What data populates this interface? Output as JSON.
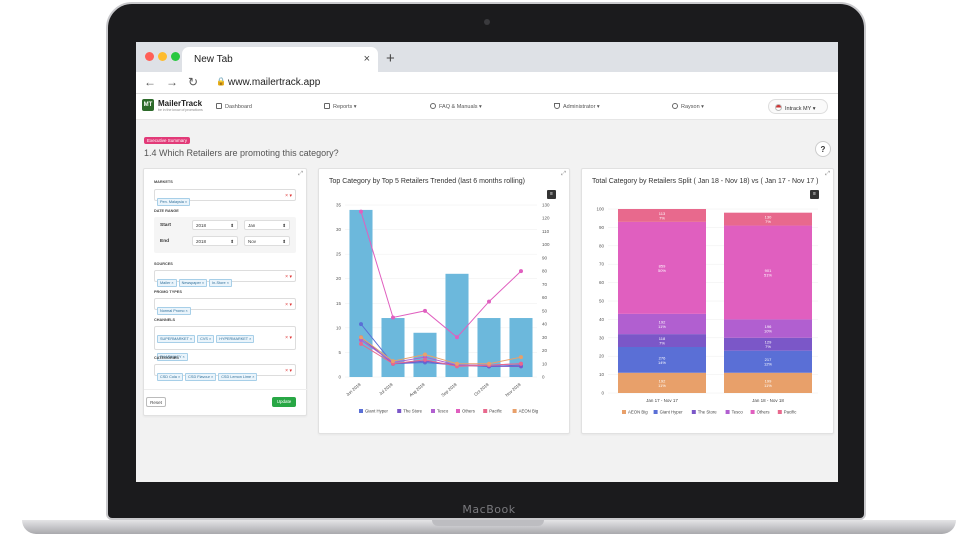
{
  "device": {
    "brand": "MacBook"
  },
  "browser": {
    "tab_title": "New Tab",
    "tab_close": "×",
    "new_tab": "+",
    "url": "www.mailertrack.app",
    "back": "←",
    "forward": "→",
    "reload": "↻"
  },
  "app": {
    "logo_mark": "MT",
    "logo_name": "MailerTrack",
    "logo_tagline": "be in the know of promotions",
    "nav": [
      {
        "label": "Dashboard",
        "icon": "dashboard-icon"
      },
      {
        "label": "Reports",
        "icon": "reports-icon"
      },
      {
        "label": "FAQ & Manuals",
        "icon": "help-circle-icon"
      },
      {
        "label": "Administrator",
        "icon": "shield-icon"
      },
      {
        "label": "Rayson",
        "icon": "user-icon"
      }
    ],
    "account": "Intrack MY"
  },
  "page": {
    "badge": "Executive Summary",
    "title": "1.4 Which Retailers are promoting this category?",
    "help": "?"
  },
  "filters": {
    "markets_label": "MARKETS",
    "markets": [
      "Pen. Malaysia"
    ],
    "date_range_label": "DATE RANGE",
    "start_label": "Start",
    "start_year": "2018",
    "start_month": "Jan",
    "end_label": "End",
    "end_year": "2018",
    "end_month": "Nov",
    "sources_label": "SOURCES",
    "sources": [
      "Mailer",
      "Newspaper",
      "In-Store"
    ],
    "promo_types_label": "PROMO TYPES",
    "promo_types": [
      "Normal Promo"
    ],
    "channels_label": "CHANNELS",
    "channels": [
      "SUPERMARKET",
      "CVS",
      "HYPERMARKET",
      "PHARMACY"
    ],
    "categories_label": "CATEGORIES",
    "categories": [
      "CSD Cola",
      "CSD Flavour",
      "CSD Lemon Lime"
    ],
    "reset_label": "Reset",
    "update_label": "Update"
  },
  "colors": {
    "accent_pink": "#e23a78",
    "update_green": "#28a745",
    "Giant Hyper": "#5a6fd6",
    "The Store": "#7b57c8",
    "Tesco": "#b15fd0",
    "Others": "#e05fbf",
    "Pacific": "#e8698d",
    "AEON Big": "#e8a06a",
    "bars": "#6cb8dc"
  },
  "chart_data": [
    {
      "type": "bar",
      "title": "Top Category by Top 5 Retailers Trended (last 6 months rolling)",
      "categories": [
        "Jun 2018",
        "Jul 2018",
        "Aug 2018",
        "Sep 2018",
        "Oct 2018",
        "Nov 2018"
      ],
      "values": [
        34,
        12,
        9,
        21,
        12,
        12
      ],
      "ylim": [
        0,
        35
      ],
      "y_ticks": [
        0,
        5,
        10,
        15,
        20,
        25,
        30,
        35
      ],
      "y2lim": [
        0,
        130
      ],
      "y2_ticks": [
        0,
        10,
        20,
        30,
        40,
        50,
        60,
        70,
        80,
        90,
        100,
        110,
        120,
        130
      ],
      "series": [
        {
          "name": "Giant Hyper",
          "values": [
            40,
            10,
            11,
            9,
            8,
            9
          ]
        },
        {
          "name": "The Store",
          "values": [
            30,
            10,
            12,
            9,
            8,
            8
          ]
        },
        {
          "name": "Tesco",
          "values": [
            28,
            11,
            15,
            9,
            9,
            10
          ]
        },
        {
          "name": "Others",
          "values": [
            125,
            45,
            50,
            30,
            57,
            80
          ]
        },
        {
          "name": "Pacific",
          "values": [
            25,
            10,
            13,
            8,
            9,
            10
          ]
        },
        {
          "name": "AEON Big",
          "values": [
            30,
            12,
            17,
            10,
            10,
            15
          ]
        }
      ],
      "legend": [
        "Giant Hyper",
        "The Store",
        "Tesco",
        "Others",
        "Pacific",
        "AEON Big"
      ],
      "legend_placement": "bottom"
    },
    {
      "type": "bar",
      "stacked": true,
      "title": "Total Category by Retailers Split ( Jan 18 - Nov 18) vs ( Jan 17 - Nov 17 )",
      "categories": [
        "Jan 17 - Nov 17",
        "Jan 18 - Nov 18"
      ],
      "ylim": [
        0,
        100
      ],
      "y_ticks": [
        0,
        10,
        20,
        30,
        40,
        50,
        60,
        70,
        80,
        90,
        100
      ],
      "series": [
        {
          "name": "AEON Big",
          "values": [
            11,
            11
          ],
          "labels": [
            "192",
            "199"
          ]
        },
        {
          "name": "Giant Hyper",
          "values": [
            14,
            12
          ],
          "labels": [
            "276",
            "217"
          ]
        },
        {
          "name": "The Store",
          "values": [
            7,
            7
          ],
          "labels": [
            "118",
            "129"
          ]
        },
        {
          "name": "Tesco",
          "values": [
            11,
            10
          ],
          "labels": [
            "192",
            "196"
          ]
        },
        {
          "name": "Others",
          "values": [
            50,
            51
          ],
          "labels": [
            "859",
            "901"
          ]
        },
        {
          "name": "Pacific",
          "values": [
            7,
            7
          ],
          "labels": [
            "113",
            "130"
          ]
        }
      ],
      "legend": [
        "AEON Big",
        "Giant Hyper",
        "The Store",
        "Tesco",
        "Others",
        "Pacific"
      ],
      "legend_placement": "bottom"
    }
  ]
}
